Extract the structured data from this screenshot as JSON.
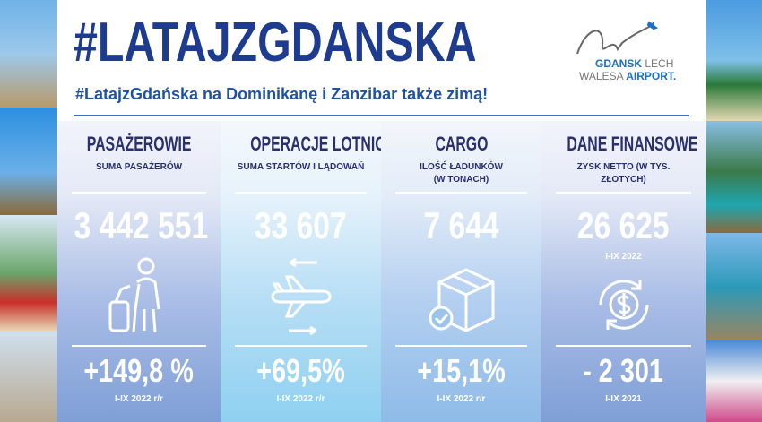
{
  "header": {
    "title": "#LATAJZGDANSKA",
    "subtitle": "#LatajzGdańska na Dominikanę i Zanzibar także zimą!"
  },
  "logo": {
    "line1_bold": "GDANSK",
    "line1": " LECH",
    "line2": "WALESA ",
    "line2_bold": "AIRPORT."
  },
  "columns": [
    {
      "heading": "PASAŻEROWIE",
      "sub": "SUMA PASAŻERÓW",
      "value": "3 442 551",
      "change": "+149,8 %",
      "period": "I-IX 2022 r/r",
      "icon": "traveler-with-suitcase-icon"
    },
    {
      "heading": "OPERACJE LOTNICZE",
      "sub": "SUMA STARTÓW I LĄDOWAŃ",
      "value": "33 607",
      "change": "+69,5%",
      "period": "I-IX 2022 r/r",
      "icon": "airplane-icon"
    },
    {
      "heading": "CARGO",
      "sub": "ILOŚĆ ŁADUNKÓW (W TONACH)",
      "value": "7 644",
      "change": "+15,1%",
      "period": "I-IX 2022 r/r",
      "icon": "package-icon"
    },
    {
      "heading": "DANE FINANSOWE",
      "sub": "ZYSK NETTO (W TYS. ZŁOTYCH)",
      "value": "26 625",
      "value_period": "I-IX 2022",
      "change": "- 2 301",
      "period": "I-IX 2021",
      "icon": "dollar-cycle-icon"
    }
  ],
  "colors": {
    "title": "#1e3c8f",
    "heading": "#2a2f6e",
    "accent": "#1a6fc8"
  }
}
